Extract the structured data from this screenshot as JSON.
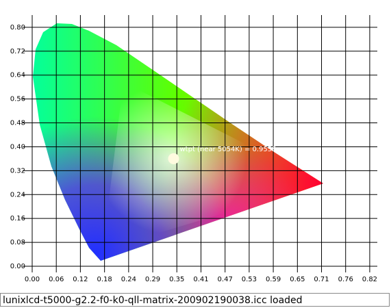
{
  "chart_data": {
    "type": "chromaticity",
    "xlim": [
      0,
      0.842
    ],
    "ylim": [
      0,
      0.841
    ],
    "xticks": [
      {
        "value": 0,
        "label": "0.00"
      },
      {
        "value": 0.0588,
        "label": "0.06"
      },
      {
        "value": 0.1176,
        "label": "0.12"
      },
      {
        "value": 0.1765,
        "label": "0.18"
      },
      {
        "value": 0.2353,
        "label": "0.24"
      },
      {
        "value": 0.2941,
        "label": "0.29"
      },
      {
        "value": 0.3529,
        "label": "0.35"
      },
      {
        "value": 0.4118,
        "label": "0.41"
      },
      {
        "value": 0.4706,
        "label": "0.47"
      },
      {
        "value": 0.5294,
        "label": "0.53"
      },
      {
        "value": 0.5882,
        "label": "0.59"
      },
      {
        "value": 0.6471,
        "label": "0.65"
      },
      {
        "value": 0.7059,
        "label": "0.71"
      },
      {
        "value": 0.7647,
        "label": "0.76"
      },
      {
        "value": 0.8235,
        "label": "0.82"
      }
    ],
    "yticks": [
      {
        "value": 0,
        "label": "0.00"
      },
      {
        "value": 0.08,
        "label": "0.08"
      },
      {
        "value": 0.16,
        "label": "0.16"
      },
      {
        "value": 0.24,
        "label": "0.24"
      },
      {
        "value": 0.32,
        "label": "0.32"
      },
      {
        "value": 0.4,
        "label": "0.40"
      },
      {
        "value": 0.48,
        "label": "0.48"
      },
      {
        "value": 0.56,
        "label": "0.56"
      },
      {
        "value": 0.64,
        "label": "0.64"
      },
      {
        "value": 0.72,
        "label": "0.72"
      },
      {
        "value": 0.8,
        "label": "0.80"
      }
    ],
    "grid": true,
    "white_point": {
      "x": 0.345,
      "y": 0.36,
      "color": "#fffbe0"
    },
    "annotation": "wtpt (near 5054K) = 0.9558"
  },
  "status_bar": {
    "text": "lunixlcd-t5000-g2.2-f0-k0-qll-matrix-200902190038.icc loaded"
  }
}
